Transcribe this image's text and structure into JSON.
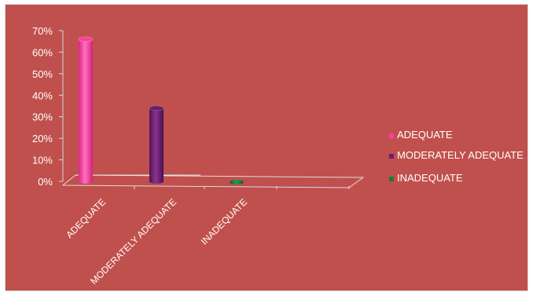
{
  "chart_data": {
    "type": "bar",
    "style": "3d-cylinder",
    "categories": [
      "ADEQUATE",
      "MODERATELY ADEQUATE",
      "INADEQUATE"
    ],
    "series": [
      {
        "name": "ADEQUATE",
        "values": [
          66,
          null,
          null
        ],
        "color": "#ff3fa0"
      },
      {
        "name": "MODERATELY ADEQUATE",
        "values": [
          null,
          34,
          null
        ],
        "color": "#6a1e6e"
      },
      {
        "name": "INADEQUATE",
        "values": [
          null,
          null,
          0
        ],
        "color": "#1e7a3c"
      }
    ],
    "yticks": [
      "0%",
      "10%",
      "20%",
      "30%",
      "40%",
      "50%",
      "60%",
      "70%"
    ],
    "ylim": [
      0,
      70
    ],
    "legend_position": "right",
    "background_color": "#c0504d"
  }
}
